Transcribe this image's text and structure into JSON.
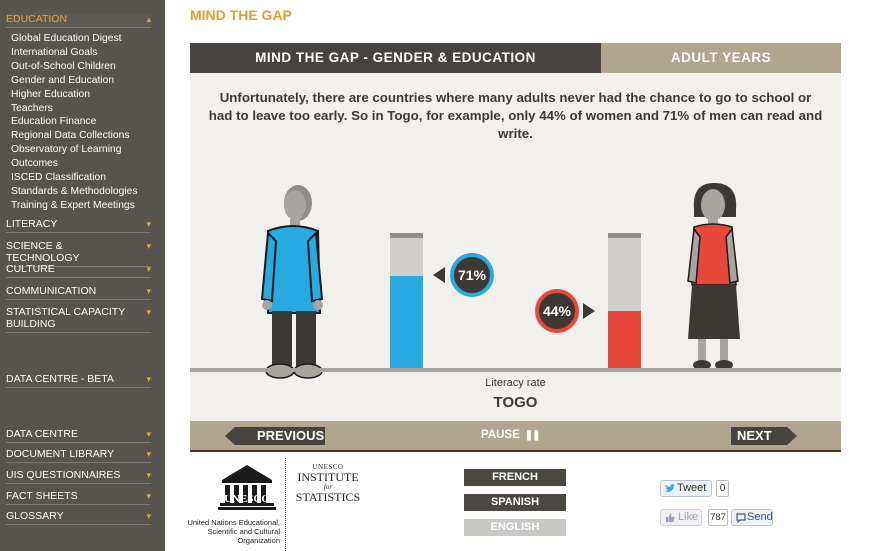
{
  "sidebar": {
    "active_section": "EDUCATION",
    "education_items": [
      "Global Education Digest",
      "International Goals",
      "Out-of-School Children",
      "Gender and Education",
      "Higher Education",
      "Teachers",
      "Education Finance",
      "Regional Data Collections",
      "Observatory of Learning Outcomes",
      "ISCED Classification",
      "Standards & Methodologies",
      "Training & Expert Meetings"
    ],
    "sections": [
      "LITERACY",
      "SCIENCE & TECHNOLOGY",
      "CULTURE",
      "COMMUNICATION",
      "STATISTICAL CAPACITY BUILDING",
      "DATA CENTRE - BETA",
      "DATA CENTRE",
      "DOCUMENT LIBRARY",
      "UIS QUESTIONNAIRES",
      "FACT SHEETS",
      "GLOSSARY"
    ]
  },
  "page_title": "MIND THE GAP",
  "tabs": {
    "gender": "MIND THE GAP - GENDER & EDUCATION",
    "adult": "ADULT YEARS"
  },
  "stage": {
    "blurb": "Unfortunately, there are countries where many adults never had the chance to go to school or had to leave too early. So in Togo, for example, only 44% of women and 71% of men can read and write.",
    "men_label": "71%",
    "women_label": "44%",
    "caption": "Literacy rate",
    "country": "TOGO"
  },
  "chart_data": {
    "type": "bar",
    "categories": [
      "Men",
      "Women"
    ],
    "values": [
      71,
      44
    ],
    "ylim": [
      0,
      100
    ],
    "colors": [
      "#27a9e1",
      "#e8473b"
    ],
    "xlabel": "Literacy rate",
    "title": "TOGO"
  },
  "nav": {
    "previous": "PREVIOUS",
    "pause": "PAUSE",
    "pause_icon": "❚❚",
    "next": "NEXT"
  },
  "footer": {
    "unesco_wordmark": "UNESCO",
    "un_caption": "United Nations Educational, Scientific and Cultural Organization",
    "uis_line1": "UNESCO",
    "uis_line2": "INSTITUTE",
    "uis_line3": "for",
    "uis_line4": "STATISTICS",
    "languages": [
      "FRENCH",
      "SPANISH",
      "ENGLISH"
    ],
    "tweet_label": "Tweet",
    "tweet_count": "0",
    "like_label": "Like",
    "like_count": "787",
    "send_label": "Send"
  },
  "colors": {
    "accent": "#e79b2d",
    "sidebar_bg": "#57534d",
    "men_bar": "#27a9e1",
    "women_bar": "#e8473b"
  }
}
